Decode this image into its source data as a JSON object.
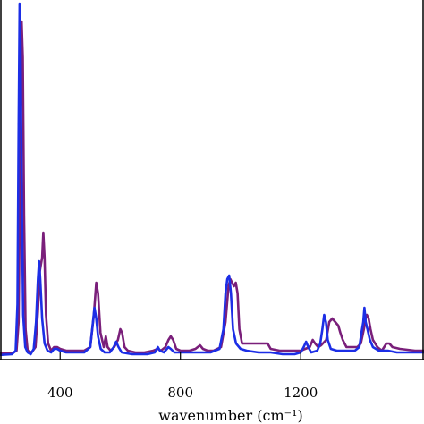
{
  "chart_data": {
    "type": "line",
    "title": "",
    "xlabel": "wavenumber (cm⁻¹)",
    "ylabel": "",
    "xlim": [
      200,
      1610
    ],
    "ylim": [
      -0.5,
      100
    ],
    "x_ticks": [
      400,
      800,
      1200
    ],
    "x_tick_labels": [
      "400",
      "800",
      "1200"
    ],
    "grid": false,
    "legend": "none",
    "series": [
      {
        "color": "#7a1f7a",
        "points": [
          [
            200,
            1.2
          ],
          [
            240,
            1.2
          ],
          [
            255,
            2
          ],
          [
            262,
            10
          ],
          [
            268,
            60
          ],
          [
            272,
            94
          ],
          [
            276,
            84
          ],
          [
            280,
            40
          ],
          [
            285,
            8
          ],
          [
            292,
            2
          ],
          [
            305,
            1.5
          ],
          [
            318,
            3
          ],
          [
            326,
            13
          ],
          [
            332,
            24
          ],
          [
            336,
            26
          ],
          [
            340,
            28
          ],
          [
            344,
            35
          ],
          [
            348,
            28
          ],
          [
            353,
            12
          ],
          [
            360,
            4
          ],
          [
            370,
            2
          ],
          [
            380,
            3
          ],
          [
            390,
            3
          ],
          [
            400,
            2.5
          ],
          [
            420,
            2
          ],
          [
            450,
            2
          ],
          [
            480,
            2
          ],
          [
            500,
            3
          ],
          [
            512,
            12
          ],
          [
            520,
            21
          ],
          [
            526,
            18
          ],
          [
            534,
            7
          ],
          [
            545,
            3
          ],
          [
            552,
            6
          ],
          [
            558,
            3
          ],
          [
            568,
            2
          ],
          [
            580,
            3
          ],
          [
            592,
            5
          ],
          [
            600,
            8
          ],
          [
            606,
            7
          ],
          [
            614,
            3
          ],
          [
            625,
            2
          ],
          [
            650,
            1.5
          ],
          [
            680,
            1.5
          ],
          [
            710,
            2
          ],
          [
            725,
            2.5
          ],
          [
            735,
            2
          ],
          [
            750,
            3
          ],
          [
            760,
            5
          ],
          [
            768,
            6
          ],
          [
            776,
            5
          ],
          [
            786,
            2.5
          ],
          [
            800,
            2
          ],
          [
            830,
            2
          ],
          [
            850,
            2.5
          ],
          [
            865,
            3.5
          ],
          [
            875,
            2.5
          ],
          [
            890,
            2
          ],
          [
            910,
            2
          ],
          [
            935,
            3
          ],
          [
            950,
            10
          ],
          [
            960,
            20
          ],
          [
            966,
            22
          ],
          [
            972,
            21
          ],
          [
            978,
            20
          ],
          [
            984,
            21
          ],
          [
            990,
            18
          ],
          [
            996,
            8
          ],
          [
            1005,
            4
          ],
          [
            1020,
            4
          ],
          [
            1060,
            4
          ],
          [
            1090,
            4
          ],
          [
            1100,
            2.5
          ],
          [
            1130,
            2
          ],
          [
            1170,
            2
          ],
          [
            1200,
            2
          ],
          [
            1215,
            2.5
          ],
          [
            1230,
            3
          ],
          [
            1240,
            5
          ],
          [
            1248,
            4
          ],
          [
            1258,
            3
          ],
          [
            1268,
            3.5
          ],
          [
            1285,
            5
          ],
          [
            1295,
            10
          ],
          [
            1305,
            11
          ],
          [
            1315,
            10
          ],
          [
            1325,
            9
          ],
          [
            1332,
            7
          ],
          [
            1340,
            5
          ],
          [
            1352,
            3
          ],
          [
            1370,
            3
          ],
          [
            1388,
            3
          ],
          [
            1400,
            4
          ],
          [
            1410,
            8
          ],
          [
            1416,
            11
          ],
          [
            1420,
            12
          ],
          [
            1426,
            11
          ],
          [
            1432,
            8
          ],
          [
            1440,
            5
          ],
          [
            1455,
            3
          ],
          [
            1470,
            2
          ],
          [
            1485,
            4
          ],
          [
            1495,
            4
          ],
          [
            1505,
            3
          ],
          [
            1530,
            2.5
          ],
          [
            1580,
            2
          ],
          [
            1610,
            2
          ]
        ]
      },
      {
        "color": "#1c2ee6",
        "points": [
          [
            200,
            0.8
          ],
          [
            240,
            1
          ],
          [
            252,
            2
          ],
          [
            258,
            15
          ],
          [
            262,
            65
          ],
          [
            265,
            99
          ],
          [
            268,
            88
          ],
          [
            272,
            48
          ],
          [
            277,
            12
          ],
          [
            284,
            3
          ],
          [
            292,
            1.5
          ],
          [
            302,
            1
          ],
          [
            312,
            2.5
          ],
          [
            320,
            10
          ],
          [
            326,
            22
          ],
          [
            330,
            27
          ],
          [
            334,
            22
          ],
          [
            340,
            11
          ],
          [
            348,
            4
          ],
          [
            358,
            2
          ],
          [
            370,
            1.5
          ],
          [
            380,
            2.5
          ],
          [
            390,
            2.5
          ],
          [
            400,
            2
          ],
          [
            420,
            1.5
          ],
          [
            450,
            1.5
          ],
          [
            480,
            1.5
          ],
          [
            500,
            3
          ],
          [
            508,
            9
          ],
          [
            514,
            14
          ],
          [
            520,
            11
          ],
          [
            526,
            6
          ],
          [
            535,
            2.5
          ],
          [
            548,
            1.5
          ],
          [
            565,
            1.5
          ],
          [
            578,
            3
          ],
          [
            586,
            4.5
          ],
          [
            594,
            3
          ],
          [
            605,
            1.5
          ],
          [
            640,
            1
          ],
          [
            690,
            1
          ],
          [
            715,
            1.5
          ],
          [
            725,
            3
          ],
          [
            732,
            2
          ],
          [
            745,
            1.5
          ],
          [
            760,
            3
          ],
          [
            768,
            2.5
          ],
          [
            780,
            1.5
          ],
          [
            820,
            1.5
          ],
          [
            860,
            1.5
          ],
          [
            900,
            1.5
          ],
          [
            930,
            2.5
          ],
          [
            943,
            8
          ],
          [
            950,
            18
          ],
          [
            956,
            22
          ],
          [
            962,
            23
          ],
          [
            968,
            18
          ],
          [
            975,
            8
          ],
          [
            985,
            4
          ],
          [
            1000,
            2.5
          ],
          [
            1020,
            2
          ],
          [
            1060,
            1.5
          ],
          [
            1100,
            1.5
          ],
          [
            1140,
            1
          ],
          [
            1180,
            1
          ],
          [
            1200,
            1.5
          ],
          [
            1210,
            3
          ],
          [
            1218,
            4.5
          ],
          [
            1225,
            3
          ],
          [
            1235,
            1.5
          ],
          [
            1255,
            2
          ],
          [
            1265,
            4
          ],
          [
            1272,
            8
          ],
          [
            1278,
            12
          ],
          [
            1284,
            10
          ],
          [
            1290,
            5
          ],
          [
            1300,
            2.5
          ],
          [
            1320,
            2
          ],
          [
            1350,
            2
          ],
          [
            1380,
            2
          ],
          [
            1395,
            3
          ],
          [
            1402,
            7
          ],
          [
            1408,
            10
          ],
          [
            1412,
            14
          ],
          [
            1416,
            10
          ],
          [
            1422,
            8
          ],
          [
            1430,
            5
          ],
          [
            1440,
            3
          ],
          [
            1460,
            2
          ],
          [
            1490,
            2
          ],
          [
            1520,
            1.5
          ],
          [
            1560,
            1.5
          ],
          [
            1610,
            1.5
          ]
        ]
      }
    ]
  }
}
